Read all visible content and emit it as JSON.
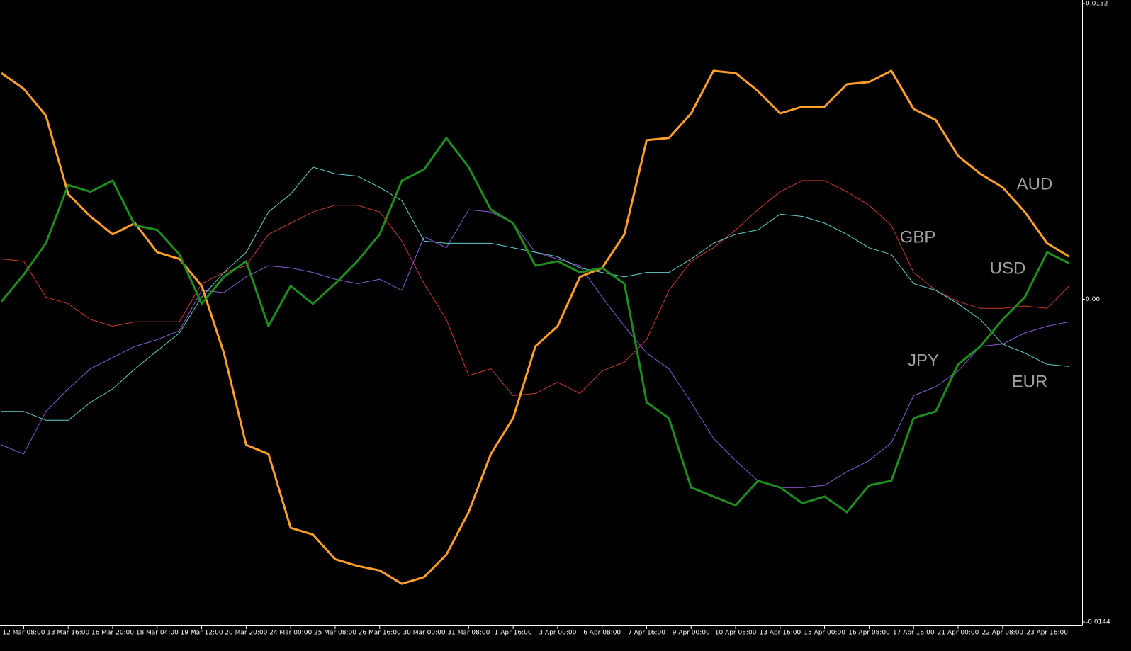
{
  "chart_data": {
    "type": "line",
    "categories": [
      null,
      "12 Mar 08:00",
      null,
      "13 Mar 16:00",
      null,
      "16 Mar 20:00",
      null,
      "18 Mar 04:00",
      null,
      "19 Mar 12:00",
      null,
      "20 Mar 20:00",
      null,
      "24 Mar 00:00",
      null,
      "25 Mar 08:00",
      null,
      "26 Mar 16:00",
      null,
      "30 Mar 00:00",
      null,
      "31 Mar 08:00",
      null,
      "1 Apr 16:00",
      null,
      "3 Apr 00:00",
      null,
      "6 Apr 08:00",
      null,
      "7 Apr 16:00",
      null,
      "9 Apr 00:00",
      null,
      "10 Apr 08:00",
      null,
      "13 Apr 16:00",
      null,
      "15 Apr 00:00",
      null,
      "16 Apr 08:00",
      null,
      "17 Apr 16:00",
      null,
      "21 Apr 00:00",
      null,
      "22 Apr 08:00",
      null,
      "23 Apr 16:00",
      null
    ],
    "series": [
      {
        "name": "AUD",
        "color": "#ff9f2a",
        "width": 3,
        "values": [
          0.0101,
          0.0094,
          0.0082,
          0.0047,
          0.0037,
          0.0029,
          0.0034,
          0.0021,
          0.0018,
          0.0006,
          -0.0024,
          -0.0065,
          -0.0069,
          -0.0102,
          -0.0105,
          -0.0116,
          -0.0119,
          -0.0121,
          -0.0127,
          -0.0124,
          -0.0114,
          -0.0095,
          -0.0069,
          -0.0053,
          -0.0021,
          -0.0012,
          0.001,
          0.0014,
          0.0029,
          0.0071,
          0.0072,
          0.0083,
          0.0102,
          0.0101,
          0.0093,
          0.0083,
          0.0086,
          0.0086,
          0.0096,
          0.0097,
          0.0102,
          0.0085,
          0.008,
          0.0064,
          0.0056,
          0.005,
          0.0039,
          0.0025,
          0.0019
        ]
      },
      {
        "name": "GBP",
        "color": "#c83c28",
        "width": 1,
        "values": [
          0.0018,
          0.0017,
          0.0001,
          -0.0002,
          -0.0009,
          -0.0012,
          -0.001,
          -0.001,
          -0.001,
          0.0007,
          0.0012,
          0.0015,
          0.0029,
          0.0034,
          0.0039,
          0.0042,
          0.0042,
          0.0039,
          0.0026,
          0.0007,
          -0.0009,
          -0.0034,
          -0.0031,
          -0.0043,
          -0.0042,
          -0.0037,
          -0.0042,
          -0.0032,
          -0.0028,
          -0.0018,
          0.0004,
          0.0017,
          0.0023,
          0.0031,
          0.004,
          0.0048,
          0.0053,
          0.0053,
          0.0048,
          0.0042,
          0.0033,
          0.0012,
          0.0004,
          -0.0001,
          -0.0004,
          -0.0004,
          -0.0003,
          -0.0004,
          0.0006
        ]
      },
      {
        "name": "USD",
        "color": "#1e8c1e",
        "width": 3,
        "values": [
          -0.0001,
          0.0011,
          0.0025,
          0.0051,
          0.0048,
          0.0053,
          0.0033,
          0.0031,
          0.002,
          -0.0002,
          0.001,
          0.0017,
          -0.0012,
          0.0006,
          -0.0002,
          0.0007,
          0.0017,
          0.0029,
          0.0053,
          0.0058,
          0.0072,
          0.0059,
          0.004,
          0.0034,
          0.0015,
          0.0017,
          0.0012,
          0.0014,
          0.0007,
          -0.0046,
          -0.0053,
          -0.0084,
          -0.0088,
          -0.0092,
          -0.0081,
          -0.0084,
          -0.0091,
          -0.0088,
          -0.0095,
          -0.0083,
          -0.0081,
          -0.0053,
          -0.005,
          -0.0029,
          -0.0021,
          -0.0009,
          0.0001,
          0.0021,
          0.0016
        ]
      },
      {
        "name": "JPY",
        "color": "#8a5ad2",
        "width": 1,
        "values": [
          -0.0065,
          -0.0069,
          -0.005,
          -0.004,
          -0.0031,
          -0.0026,
          -0.0021,
          -0.0018,
          -0.0014,
          0.0004,
          0.0003,
          0.001,
          0.0015,
          0.0014,
          0.0012,
          0.0009,
          0.0007,
          0.0009,
          0.0004,
          0.0028,
          0.0023,
          0.004,
          0.0039,
          0.0034,
          0.0021,
          0.0018,
          0.0015,
          0.0001,
          -0.0012,
          -0.0024,
          -0.0031,
          -0.0046,
          -0.0062,
          -0.0072,
          -0.0081,
          -0.0084,
          -0.0084,
          -0.0083,
          -0.0077,
          -0.0072,
          -0.0064,
          -0.0043,
          -0.0039,
          -0.0032,
          -0.0021,
          -0.002,
          -0.0015,
          -0.0012,
          -0.001
        ]
      },
      {
        "name": "EUR",
        "color": "#66cccc",
        "width": 1,
        "values": [
          -0.005,
          -0.005,
          -0.0054,
          -0.0054,
          -0.0046,
          -0.004,
          -0.0031,
          -0.0023,
          -0.0015,
          0.0001,
          0.0012,
          0.0021,
          0.0039,
          0.0047,
          0.0059,
          0.0056,
          0.0055,
          0.005,
          0.0044,
          0.0026,
          0.0025,
          0.0025,
          0.0025,
          0.0023,
          0.0021,
          0.0019,
          0.0014,
          0.0012,
          0.001,
          0.0012,
          0.0012,
          0.0018,
          0.0025,
          0.0029,
          0.0031,
          0.0038,
          0.0037,
          0.0034,
          0.0029,
          0.0023,
          0.002,
          0.0007,
          0.0004,
          -0.0002,
          -0.0009,
          -0.002,
          -0.0024,
          -0.0029,
          -0.003
        ]
      }
    ],
    "ylim": [
      -0.0144,
      0.0132
    ],
    "yticks": [
      -0.0144,
      {
        "value": 0,
        "label": "0.00"
      },
      0.0132
    ]
  }
}
